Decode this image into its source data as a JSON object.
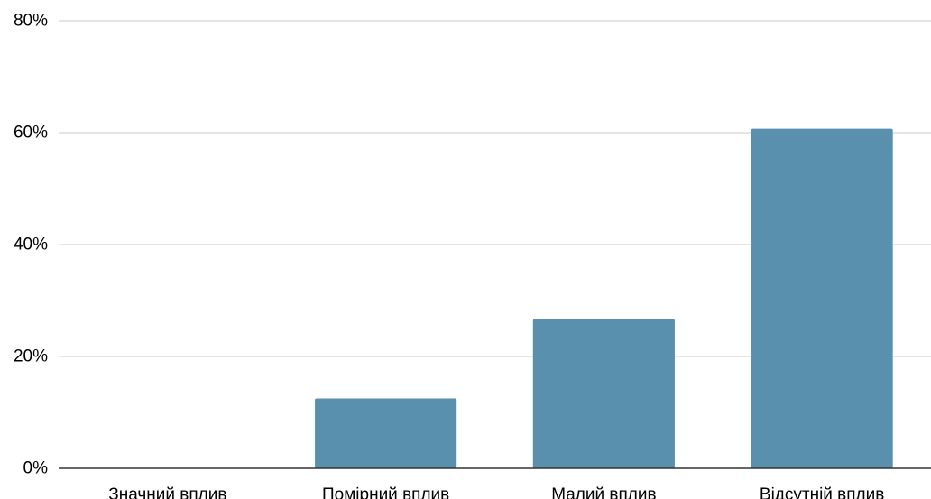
{
  "chart_data": {
    "type": "bar",
    "title": "",
    "xlabel": "",
    "ylabel": "",
    "categories": [
      "Значний вплив",
      "Помірний вплив",
      "Малий вплив",
      "Відсутній вплив"
    ],
    "values": [
      0,
      12.5,
      26.7,
      60.7
    ],
    "value_unit": "%",
    "ylim": [
      0,
      80
    ],
    "yticks": [
      0,
      20,
      40,
      60,
      80
    ],
    "ytick_labels": [
      "0%",
      "20%",
      "40%",
      "60%",
      "80%"
    ],
    "grid": true,
    "legend": "none",
    "colors": {
      "bar": "#5990ad",
      "gridline": "#c8c8c8",
      "axis": "#333333",
      "text": "#000000"
    }
  }
}
